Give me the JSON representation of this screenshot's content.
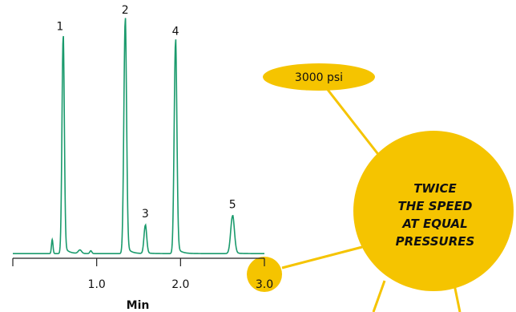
{
  "colors": {
    "trace": "#1a9a6c",
    "accent": "#f5c400",
    "axis": "#222222"
  },
  "bubble": {
    "label": "3000 psi"
  },
  "callout": {
    "lines": [
      "TWICE",
      "THE SPEED",
      "AT EQUAL",
      "PRESSURES"
    ]
  },
  "chart_data": {
    "type": "line",
    "title": "",
    "xlabel": "Min",
    "ylabel": "",
    "xlim": [
      0,
      3.0
    ],
    "xticks": [
      0,
      1.0,
      2.0,
      3.0
    ],
    "xtick_labels": [
      "",
      "1.0",
      "2.0",
      "3.0"
    ],
    "highlighted_tick": "3.0",
    "grid": false,
    "baseline": 0.02,
    "peaks": [
      {
        "label": "1",
        "x": 0.6,
        "y": 0.92,
        "sigma": 0.014
      },
      {
        "label": "2",
        "x": 1.34,
        "y": 0.99,
        "sigma": 0.016
      },
      {
        "label": "3",
        "x": 1.58,
        "y": 0.12,
        "sigma": 0.016
      },
      {
        "label": "4",
        "x": 1.94,
        "y": 0.9,
        "sigma": 0.016
      },
      {
        "label": "5",
        "x": 2.62,
        "y": 0.16,
        "sigma": 0.022
      }
    ],
    "minor_peaks": [
      {
        "x": 0.47,
        "y": 0.06,
        "sigma": 0.009
      },
      {
        "x": 0.8,
        "y": 0.015,
        "sigma": 0.02
      },
      {
        "x": 0.93,
        "y": 0.012,
        "sigma": 0.012
      }
    ]
  }
}
